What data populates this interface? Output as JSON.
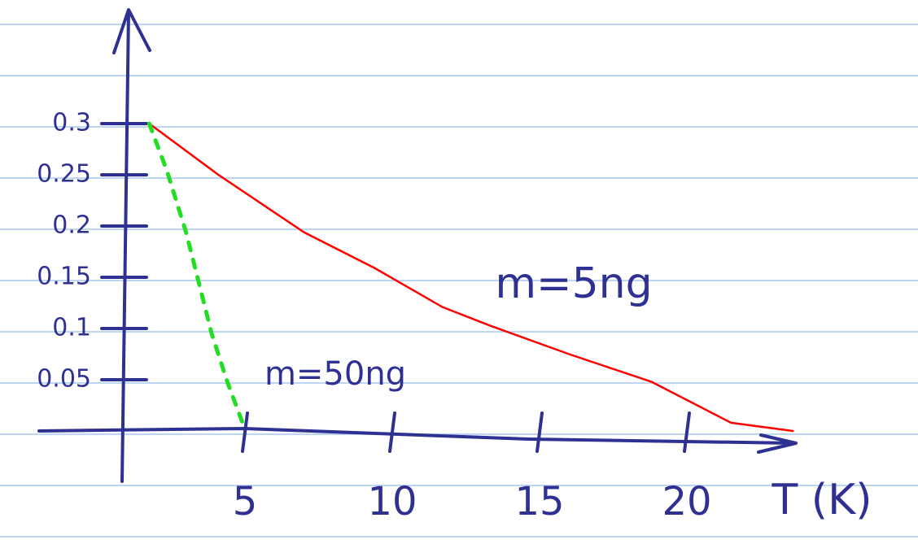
{
  "chart_data": {
    "type": "line",
    "x_label": "T (K)",
    "xlim": [
      -2,
      24
    ],
    "xticks": [
      5,
      10,
      15,
      20
    ],
    "ylim": [
      -0.05,
      0.4
    ],
    "yticks": [
      0.05,
      0.1,
      0.15,
      0.2,
      0.25,
      0.3
    ],
    "series": [
      {
        "name": "m=5ng",
        "color": "#ff0000",
        "dashed": false,
        "x": [
          1.75,
          4.1,
          7.0,
          9.4,
          11.7,
          13.3,
          16.0,
          18.8,
          21.5,
          23.6
        ],
        "values": [
          0.3,
          0.25,
          0.194,
          0.159,
          0.121,
          0.103,
          0.075,
          0.048,
          0.008,
          0
        ]
      },
      {
        "name": "m=50ng",
        "color": "#22dd22",
        "dashed": true,
        "x": [
          1.75,
          2.35,
          3.0,
          3.45,
          3.87,
          4.4,
          4.97
        ],
        "values": [
          0.3,
          0.254,
          0.194,
          0.143,
          0.095,
          0.048,
          0.004
        ]
      }
    ]
  }
}
